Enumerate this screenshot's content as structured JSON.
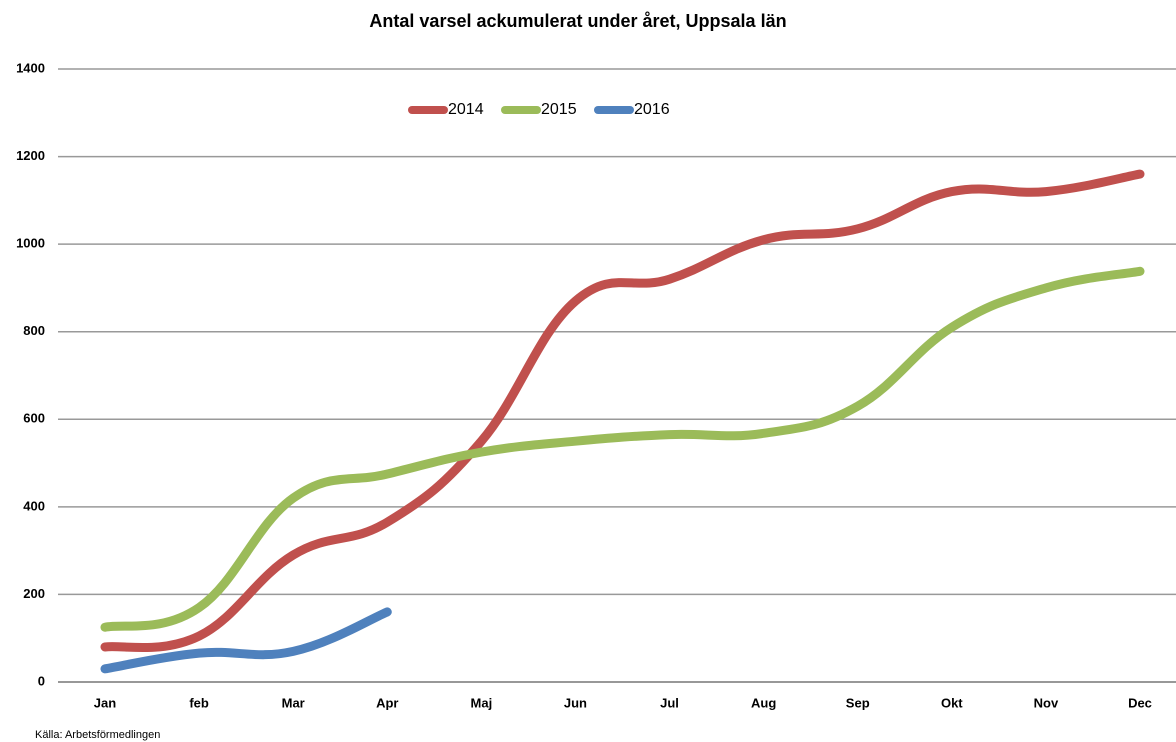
{
  "chart_data": {
    "type": "line",
    "title": "Antal varsel ackumulerat under året, Uppsala län",
    "source": "Källa: Arbetsförmedlingen",
    "categories": [
      "Jan",
      "feb",
      "Mar",
      "Apr",
      "Maj",
      "Jun",
      "Jul",
      "Aug",
      "Sep",
      "Okt",
      "Nov",
      "Dec"
    ],
    "series": [
      {
        "name": "2014",
        "color": "#c0504d",
        "values": [
          80,
          105,
          290,
          365,
          550,
          870,
          920,
          1010,
          1035,
          1120,
          1120,
          1160
        ]
      },
      {
        "name": "2015",
        "color": "#9bbb59",
        "values": [
          125,
          170,
          420,
          475,
          525,
          550,
          565,
          568,
          630,
          810,
          900,
          938
        ]
      },
      {
        "name": "2016",
        "color": "#4f81bd",
        "values": [
          30,
          66,
          70,
          160,
          null,
          null,
          null,
          null,
          null,
          null,
          null,
          null
        ]
      }
    ],
    "ylim": [
      0,
      1400
    ],
    "yticks": [
      0,
      200,
      400,
      600,
      800,
      1000,
      1200,
      1400
    ],
    "grid": true,
    "legend": "top"
  }
}
